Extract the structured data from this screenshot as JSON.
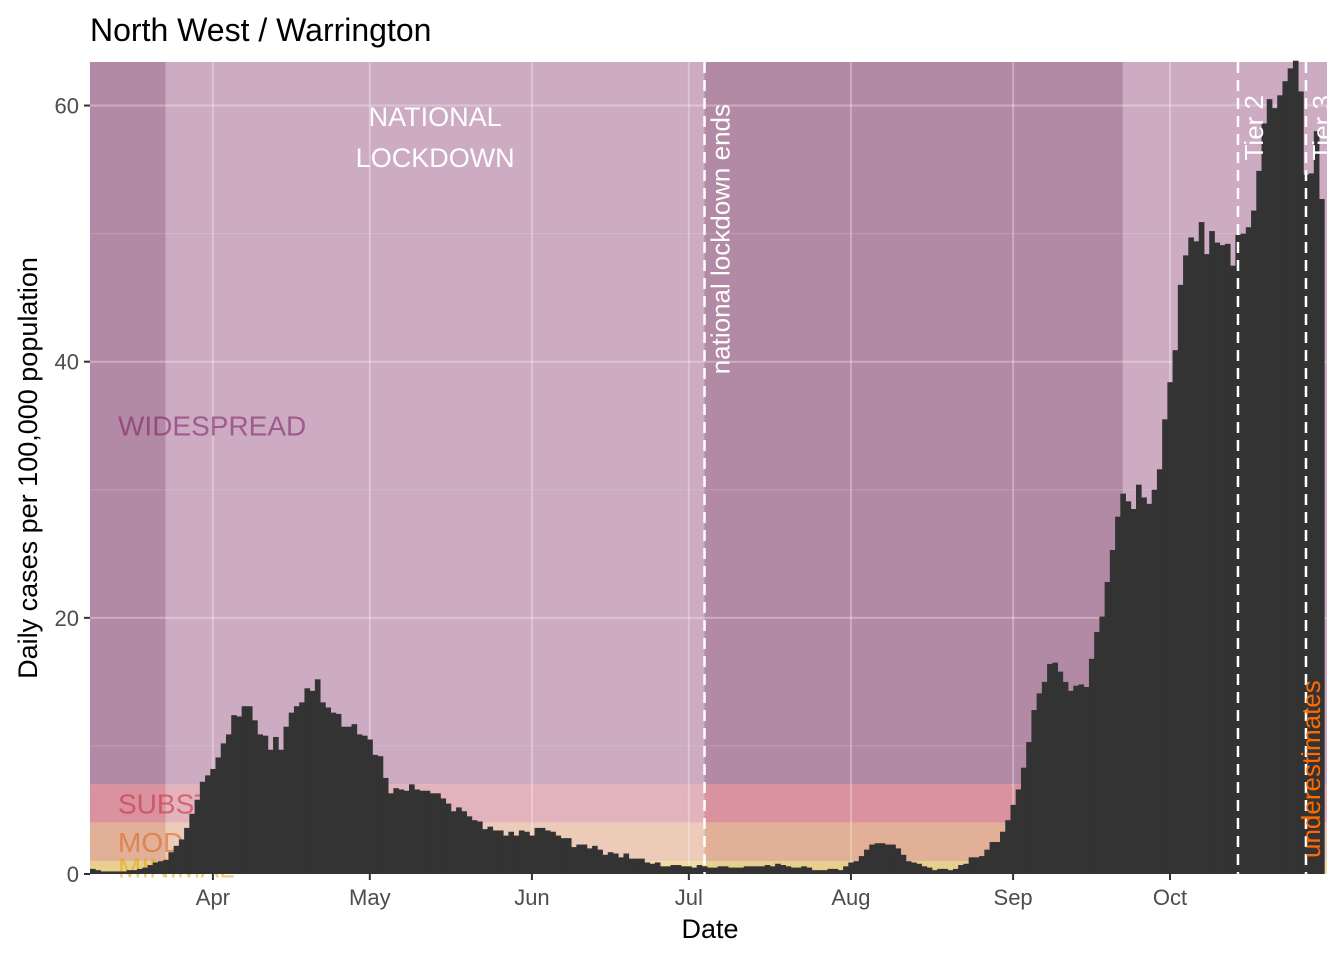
{
  "chart_data": {
    "type": "bar",
    "title": "North West / Warrington",
    "xlabel": "Date",
    "ylabel": "Daily cases per 100,000 population",
    "ylim": [
      0,
      63.4
    ],
    "yticks": [
      0,
      20,
      40,
      60
    ],
    "xticks": [
      {
        "label": "Apr",
        "date": "2020-04-01"
      },
      {
        "label": "May",
        "date": "2020-05-01"
      },
      {
        "label": "Jun",
        "date": "2020-06-01"
      },
      {
        "label": "Jul",
        "date": "2020-07-01"
      },
      {
        "label": "Aug",
        "date": "2020-08-01"
      },
      {
        "label": "Sep",
        "date": "2020-09-01"
      },
      {
        "label": "Oct",
        "date": "2020-10-01"
      }
    ],
    "xlim": [
      "2020-03-09",
      "2020-10-30"
    ],
    "grid": true,
    "start_date": "2020-03-09",
    "values": [
      0.4,
      0.3,
      0.2,
      0.2,
      0.2,
      0.2,
      0.2,
      0.3,
      0.3,
      0.4,
      0.5,
      0.7,
      0.9,
      1.0,
      1.1,
      1.7,
      2.2,
      2.7,
      3.6,
      4.7,
      5.8,
      7.2,
      7.7,
      8.2,
      9.1,
      10.2,
      10.9,
      12.4,
      12.3,
      13.1,
      13.1,
      12.0,
      10.9,
      10.8,
      9.7,
      10.7,
      9.7,
      11.5,
      12.6,
      13.1,
      13.4,
      14.5,
      14.3,
      15.2,
      13.4,
      13.0,
      12.6,
      12.5,
      11.5,
      11.5,
      11.7,
      10.9,
      10.8,
      10.5,
      9.3,
      9.2,
      7.5,
      6.3,
      6.7,
      6.6,
      6.5,
      7.0,
      6.6,
      6.5,
      6.5,
      6.3,
      6.3,
      5.9,
      5.5,
      4.9,
      5.2,
      4.9,
      4.5,
      4.2,
      4.1,
      3.5,
      3.7,
      3.4,
      3.4,
      3.0,
      3.3,
      3.0,
      3.4,
      3.3,
      3.0,
      3.6,
      3.6,
      3.4,
      3.3,
      3.0,
      2.8,
      2.8,
      2.1,
      2.3,
      2.3,
      2.0,
      2.2,
      1.9,
      1.5,
      1.7,
      1.6,
      1.3,
      1.6,
      1.2,
      1.2,
      1.2,
      0.9,
      0.8,
      0.9,
      0.6,
      0.6,
      0.7,
      0.7,
      0.6,
      0.6,
      0.5,
      0.7,
      0.6,
      0.5,
      0.5,
      0.6,
      0.6,
      0.5,
      0.5,
      0.5,
      0.6,
      0.6,
      0.6,
      0.6,
      0.7,
      0.6,
      0.8,
      0.7,
      0.6,
      0.5,
      0.5,
      0.6,
      0.5,
      0.3,
      0.3,
      0.3,
      0.4,
      0.4,
      0.3,
      0.6,
      0.9,
      1.0,
      1.4,
      1.9,
      2.3,
      2.4,
      2.4,
      2.3,
      2.3,
      2.0,
      1.5,
      1.0,
      0.9,
      0.8,
      0.6,
      0.5,
      0.3,
      0.4,
      0.4,
      0.3,
      0.4,
      0.7,
      0.8,
      1.3,
      1.3,
      1.4,
      1.9,
      2.5,
      2.5,
      3.3,
      4.2,
      5.4,
      6.6,
      8.3,
      10.3,
      12.8,
      14.1,
      15.0,
      16.4,
      16.5,
      15.8,
      15.0,
      14.3,
      14.7,
      14.8,
      14.6,
      16.8,
      18.9,
      20.1,
      22.8,
      25.3,
      27.9,
      29.7,
      29.1,
      28.5,
      30.4,
      29.4,
      28.9,
      30.0,
      31.6,
      35.5,
      38.4,
      40.9,
      46.0,
      48.3,
      49.7,
      49.4,
      50.9,
      48.4,
      50.2,
      49.3,
      49.1,
      49.2,
      47.5,
      49.9,
      50.0,
      50.5,
      51.8,
      54.9,
      58.6,
      60.5,
      59.8,
      60.8,
      61.9,
      62.9,
      63.5,
      61.1,
      54.6,
      54.7,
      58.0,
      52.7
    ],
    "bar_color": "#333333",
    "levels": [
      {
        "label": "MINIMAL",
        "from": 0,
        "to": 1,
        "color_light": "#f1dca6",
        "color_dark": "#e8cf8e",
        "text_color": "#e0a800"
      },
      {
        "label": "MODERATE",
        "from": 1,
        "to": 4,
        "color_light": "#ecccb9",
        "color_dark": "#e2b097",
        "text_color": "#d9601a"
      },
      {
        "label": "SUBSTANTIAL",
        "from": 4,
        "to": 7,
        "color_light": "#e3b3bb",
        "color_dark": "#d9929e",
        "text_color": "#c8243f"
      },
      {
        "label": "WIDESPREAD",
        "from": 7,
        "to": 63.4,
        "color_light": "#ccabc3",
        "color_dark": "#b38aa6",
        "text_color": "#7a1a5c"
      }
    ],
    "regions": [
      {
        "start": "2020-03-09",
        "end": "2020-03-23",
        "shade": "dark"
      },
      {
        "start": "2020-03-23",
        "end": "2020-07-04",
        "shade": "light",
        "label": [
          "NATIONAL",
          "LOCKDOWN"
        ]
      },
      {
        "start": "2020-07-04",
        "end": "2020-09-22",
        "shade": "dark"
      },
      {
        "start": "2020-09-22",
        "end": "2020-10-31",
        "shade": "light"
      }
    ],
    "events": [
      {
        "date": "2020-07-04",
        "label": "national lockdown ends",
        "color": "#ffffff"
      },
      {
        "date": "2020-10-14",
        "label": "Tier 2",
        "color": "#ffffff"
      },
      {
        "date": "2020-10-27",
        "label": "Tier 3",
        "color": "#ffffff"
      }
    ],
    "underestimates": {
      "label": "underestimates",
      "color": "#ff6a00"
    }
  }
}
